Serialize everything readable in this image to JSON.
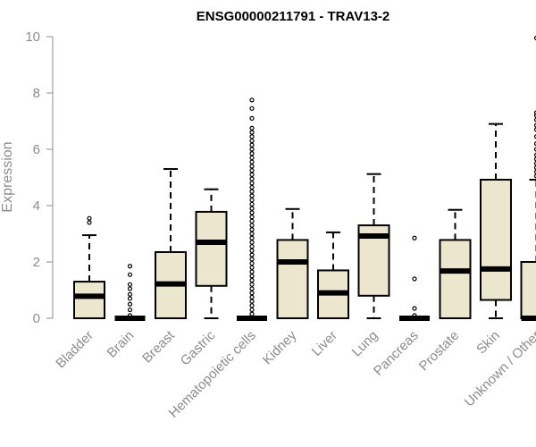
{
  "chart_data": {
    "type": "boxplot",
    "title": "ENSG00000211791 - TRAV13-2",
    "ylabel": "Expression",
    "xlabel": "",
    "ylim": [
      0,
      10
    ],
    "yticks": [
      0,
      2,
      4,
      6,
      8,
      10
    ],
    "box_fill": "#ede6cf",
    "categories": [
      "Bladder",
      "Brain",
      "Breast",
      "Gastric",
      "Hematopoietic cells",
      "Kidney",
      "Liver",
      "Lung",
      "Pancreas",
      "Prostate",
      "Skin",
      "Unknown / Other"
    ],
    "boxes": [
      {
        "q1": 0.0,
        "median": 0.78,
        "q3": 1.3,
        "whisker_low": 0.0,
        "whisker_high": 2.95,
        "outliers": [
          3.4,
          3.55
        ]
      },
      {
        "q1": 0.0,
        "median": 0.0,
        "q3": 0.0,
        "whisker_low": 0.0,
        "whisker_high": 0.0,
        "outliers": [
          0.1,
          0.3,
          0.5,
          0.7,
          0.85,
          1.05,
          1.2,
          1.55,
          1.85
        ]
      },
      {
        "q1": 0.0,
        "median": 1.22,
        "q3": 2.35,
        "whisker_low": 0.0,
        "whisker_high": 5.3,
        "outliers": []
      },
      {
        "q1": 1.15,
        "median": 2.7,
        "q3": 3.78,
        "whisker_low": 0.0,
        "whisker_high": 4.58,
        "outliers": []
      },
      {
        "q1": 0.0,
        "median": 0.0,
        "q3": 0.0,
        "whisker_low": 0.0,
        "whisker_high": 0.0,
        "outliers": [
          0.15,
          0.3,
          0.45,
          0.6,
          0.75,
          0.9,
          1.05,
          1.2,
          1.35,
          1.5,
          1.65,
          1.8,
          1.95,
          2.1,
          2.25,
          2.4,
          2.55,
          2.7,
          2.85,
          3.0,
          3.15,
          3.3,
          3.45,
          3.6,
          3.75,
          3.9,
          4.05,
          4.2,
          4.35,
          4.5,
          4.65,
          4.8,
          4.95,
          5.1,
          5.25,
          5.4,
          5.55,
          5.7,
          5.85,
          6.0,
          6.15,
          6.3,
          6.45,
          6.6,
          6.75,
          7.1,
          7.45,
          7.75
        ]
      },
      {
        "q1": 0.0,
        "median": 2.0,
        "q3": 2.78,
        "whisker_low": 0.0,
        "whisker_high": 3.88,
        "outliers": []
      },
      {
        "q1": 0.0,
        "median": 0.9,
        "q3": 1.7,
        "whisker_low": 0.0,
        "whisker_high": 3.05,
        "outliers": []
      },
      {
        "q1": 0.8,
        "median": 2.92,
        "q3": 3.3,
        "whisker_low": 0.0,
        "whisker_high": 5.12,
        "outliers": []
      },
      {
        "q1": 0.0,
        "median": 0.0,
        "q3": 0.0,
        "whisker_low": 0.0,
        "whisker_high": 0.0,
        "outliers": [
          0.1,
          0.35,
          1.4,
          2.85
        ]
      },
      {
        "q1": 0.0,
        "median": 1.68,
        "q3": 2.78,
        "whisker_low": 0.0,
        "whisker_high": 3.85,
        "outliers": []
      },
      {
        "q1": 0.65,
        "median": 1.75,
        "q3": 4.92,
        "whisker_low": 0.0,
        "whisker_high": 6.9,
        "outliers": []
      },
      {
        "q1": 0.0,
        "median": 0.0,
        "q3": 2.0,
        "whisker_low": 0.0,
        "whisker_high": 4.92,
        "outliers": [
          5.05,
          5.2,
          5.35,
          5.5,
          5.65,
          5.8,
          6.0,
          6.2,
          6.45,
          6.7,
          6.85,
          7.05,
          7.2,
          7.3,
          9.95
        ]
      }
    ]
  }
}
